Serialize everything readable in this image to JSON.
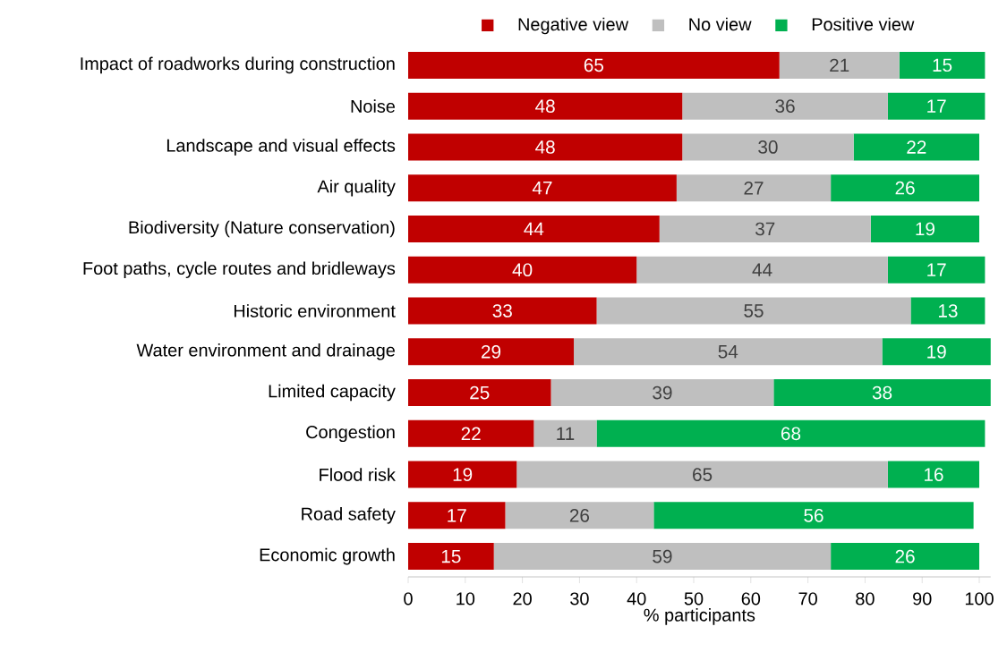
{
  "chart_data": {
    "type": "bar",
    "orientation": "horizontal",
    "stacked": true,
    "xlabel": "% participants",
    "categories": [
      "Impact of roadworks during construction",
      "Noise",
      "Landscape and visual effects",
      "Air quality",
      "Biodiversity (Nature conservation)",
      "Foot paths, cycle routes and bridleways",
      "Historic environment",
      "Water environment and drainage",
      "Limited capacity",
      "Congestion",
      "Flood risk",
      "Road safety",
      "Economic growth"
    ],
    "series": [
      {
        "name": "Negative view",
        "color": "#c00000",
        "values": [
          65,
          48,
          48,
          47,
          44,
          40,
          33,
          29,
          25,
          22,
          19,
          17,
          15
        ]
      },
      {
        "name": "No view",
        "color": "#bfbfbf",
        "values": [
          21,
          36,
          30,
          27,
          37,
          44,
          55,
          54,
          39,
          11,
          65,
          26,
          59
        ]
      },
      {
        "name": "Positive view",
        "color": "#00b050",
        "values": [
          15,
          17,
          22,
          26,
          19,
          17,
          13,
          19,
          38,
          68,
          16,
          56,
          26
        ]
      }
    ],
    "xlim": [
      0,
      102
    ],
    "xticks": [
      0,
      10,
      20,
      30,
      40,
      50,
      60,
      70,
      80,
      90,
      100
    ],
    "data_labels": true,
    "legend": "top",
    "grid": false
  }
}
